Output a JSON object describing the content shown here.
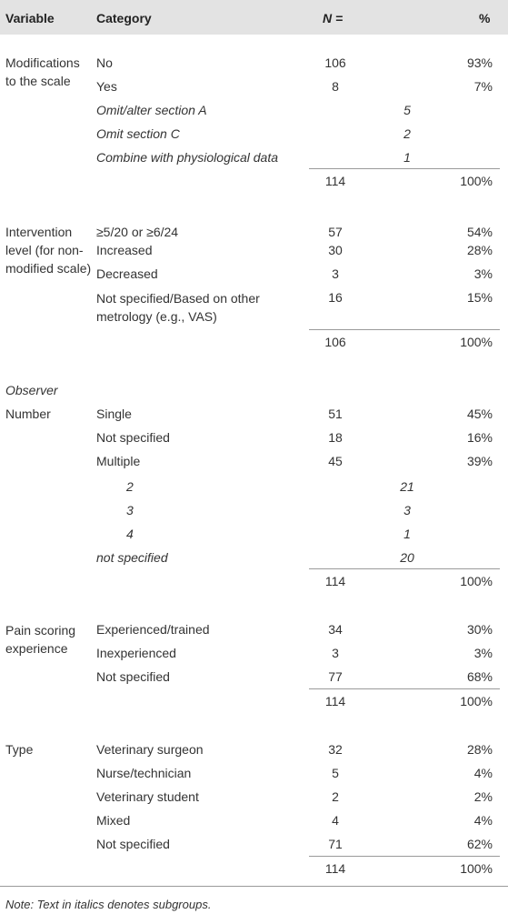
{
  "header": {
    "variable": "Variable",
    "category": "Category",
    "n": "N =",
    "pct": "%"
  },
  "sections": [
    {
      "variable": "Modifications to the scale",
      "rows": [
        {
          "category": "No",
          "n": "106",
          "pct": "93%"
        },
        {
          "category": "Yes",
          "n": "8",
          "pct": "7%"
        },
        {
          "category": "Omit/alter section A",
          "sub": "5",
          "italic": true
        },
        {
          "category": "Omit section C",
          "sub": "2",
          "italic": true
        },
        {
          "category": "Combine with physiological data",
          "sub": "1",
          "italic": true
        }
      ],
      "total": {
        "n": "114",
        "pct": "100%"
      }
    },
    {
      "variable": "Intervention level (for non-modified scale)",
      "rows": [
        {
          "category": "≥5/20 or ≥6/24",
          "n": "57",
          "pct": "54%"
        },
        {
          "category": "Increased",
          "n": "30",
          "pct": "28%"
        },
        {
          "category": "Decreased",
          "n": "3",
          "pct": "3%"
        },
        {
          "category": "Not specified/Based on other metrology (e.g., VAS)",
          "n": "16",
          "pct": "15%"
        }
      ],
      "total": {
        "n": "106",
        "pct": "100%"
      }
    },
    {
      "heading": "Observer",
      "variable": "Number",
      "rows": [
        {
          "category": "Single",
          "n": "51",
          "pct": "45%"
        },
        {
          "category": "Not specified",
          "n": "18",
          "pct": "16%"
        },
        {
          "category": "Multiple",
          "n": "45",
          "pct": "39%"
        },
        {
          "category": "2",
          "sub": "21",
          "italic": true
        },
        {
          "category": "3",
          "sub": "3",
          "italic": true
        },
        {
          "category": "4",
          "sub": "1",
          "italic": true
        },
        {
          "category": "not specified",
          "sub": "20",
          "italic": true
        }
      ],
      "total": {
        "n": "114",
        "pct": "100%"
      }
    },
    {
      "variable": "Pain scoring experience",
      "rows": [
        {
          "category": "Experienced/trained",
          "n": "34",
          "pct": "30%"
        },
        {
          "category": "Inexperienced",
          "n": "3",
          "pct": "3%"
        },
        {
          "category": "Not specified",
          "n": "77",
          "pct": "68%"
        }
      ],
      "total": {
        "n": "114",
        "pct": "100%"
      }
    },
    {
      "variable": "Type",
      "rows": [
        {
          "category": "Veterinary surgeon",
          "n": "32",
          "pct": "28%"
        },
        {
          "category": "Nurse/technician",
          "n": "5",
          "pct": "4%"
        },
        {
          "category": "Veterinary student",
          "n": "2",
          "pct": "2%"
        },
        {
          "category": "Mixed",
          "n": "4",
          "pct": "4%"
        },
        {
          "category": "Not specified",
          "n": "71",
          "pct": "62%"
        }
      ],
      "total": {
        "n": "114",
        "pct": "100%"
      }
    }
  ],
  "note": "Note: Text in italics denotes subgroups."
}
